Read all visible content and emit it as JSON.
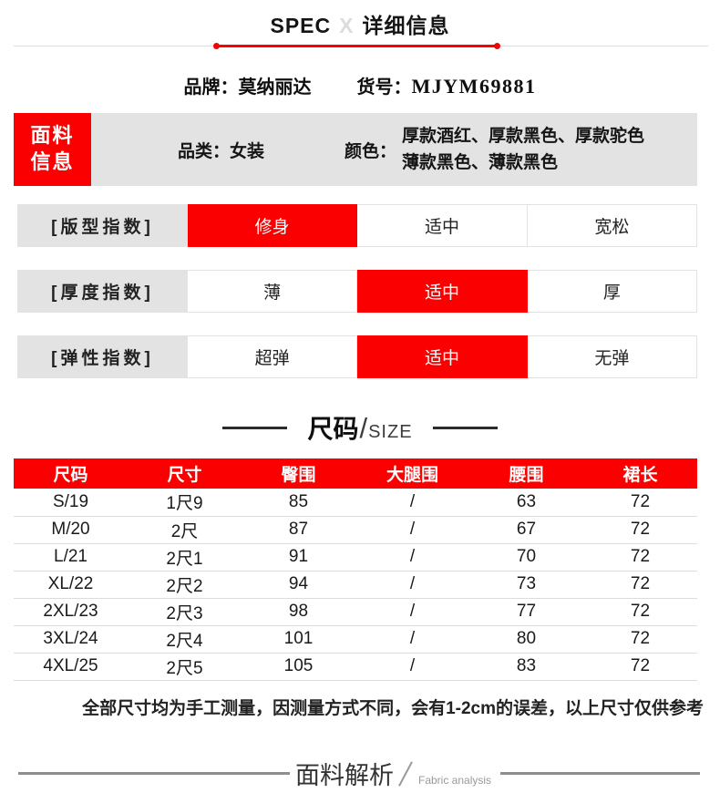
{
  "header": {
    "title_en": "SPEC",
    "title_x": "X",
    "title_cn": "详细信息"
  },
  "brand": {
    "brand_label": "品牌：",
    "brand_value": "莫纳丽达",
    "sku_label": "货号：",
    "sku_value": "MJYM69881"
  },
  "fabric_info": {
    "tag_line1": "面料",
    "tag_line2": "信息",
    "category_label": "品类：",
    "category_value": "女装",
    "color_label": "颜色：",
    "color_line1": "厚款酒红、厚款黑色、厚款驼色",
    "color_line2": "薄款黑色、薄款黑色"
  },
  "indexes": [
    {
      "label": "[版型指数]",
      "options": [
        "修身",
        "适中",
        "宽松"
      ],
      "selected": 0
    },
    {
      "label": "[厚度指数]",
      "options": [
        "薄",
        "适中",
        "厚"
      ],
      "selected": 1
    },
    {
      "label": "[弹性指数]",
      "options": [
        "超弹",
        "适中",
        "无弹"
      ],
      "selected": 1
    }
  ],
  "size_section": {
    "title_cn": "尺码",
    "slash": "/",
    "title_en": "SIZE",
    "note": "全部尺寸均为手工测量，因测量方式不同，会有1-2cm的误差，以上尺寸仅供参考"
  },
  "size_table": {
    "columns": [
      "尺码",
      "尺寸",
      "臀围",
      "大腿围",
      "腰围",
      "裙长"
    ],
    "rows": [
      [
        "S/19",
        "1尺9",
        "85",
        "/",
        "63",
        "72"
      ],
      [
        "M/20",
        "2尺",
        "87",
        "/",
        "67",
        "72"
      ],
      [
        "L/21",
        "2尺1",
        "91",
        "/",
        "70",
        "72"
      ],
      [
        "XL/22",
        "2尺2",
        "94",
        "/",
        "73",
        "72"
      ],
      [
        "2XL/23",
        "2尺3",
        "98",
        "/",
        "77",
        "72"
      ],
      [
        "3XL/24",
        "2尺4",
        "101",
        "/",
        "80",
        "72"
      ],
      [
        "4XL/25",
        "2尺5",
        "105",
        "/",
        "83",
        "72"
      ]
    ]
  },
  "footer": {
    "title_cn": "面料解析",
    "title_en": "Fabric analysis"
  },
  "colors": {
    "accent_red": "#fa0000",
    "bar_gray": "#e3e3e3"
  }
}
